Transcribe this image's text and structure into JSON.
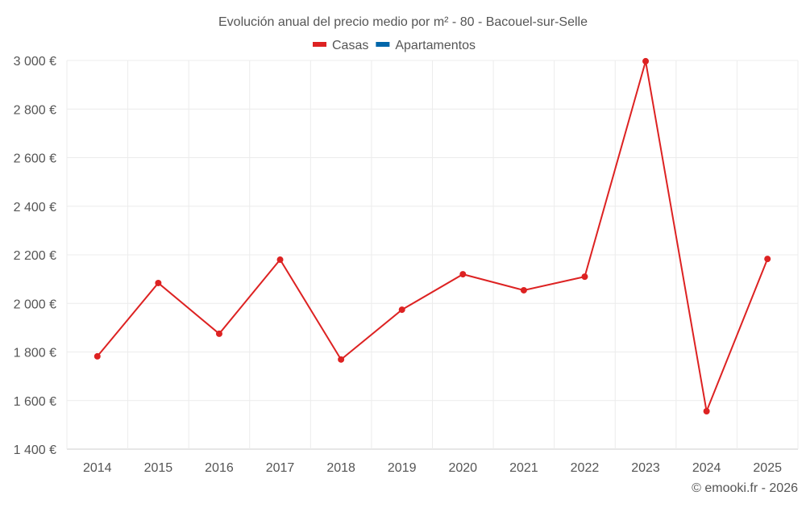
{
  "chart_data": {
    "type": "line",
    "title": "Evolución anual del precio medio por m² - 80 - Bacouel-sur-Selle",
    "legend": [
      {
        "name": "Casas",
        "color": "#dd2222"
      },
      {
        "name": "Apartamentos",
        "color": "#0066aa"
      }
    ],
    "legend_position": "top-center",
    "categories": [
      "2014",
      "2015",
      "2016",
      "2017",
      "2018",
      "2019",
      "2020",
      "2021",
      "2022",
      "2023",
      "2024",
      "2025"
    ],
    "series": [
      {
        "name": "Casas",
        "color": "#dd2222",
        "values": [
          1782,
          2084,
          1875,
          2180,
          1769,
          1974,
          2120,
          2054,
          2110,
          2997,
          1556,
          2183
        ]
      }
    ],
    "ylim": [
      1400,
      3000
    ],
    "yticks": [
      1400,
      1600,
      1800,
      2000,
      2200,
      2400,
      2600,
      2800,
      3000
    ],
    "ytick_labels": [
      "1 400 €",
      "1 600 €",
      "1 800 €",
      "2 000 €",
      "2 200 €",
      "2 400 €",
      "2 600 €",
      "2 800 €",
      "3 000 €"
    ],
    "grid": true,
    "xlabel": "",
    "ylabel": ""
  },
  "credit": "© emooki.fr - 2026"
}
